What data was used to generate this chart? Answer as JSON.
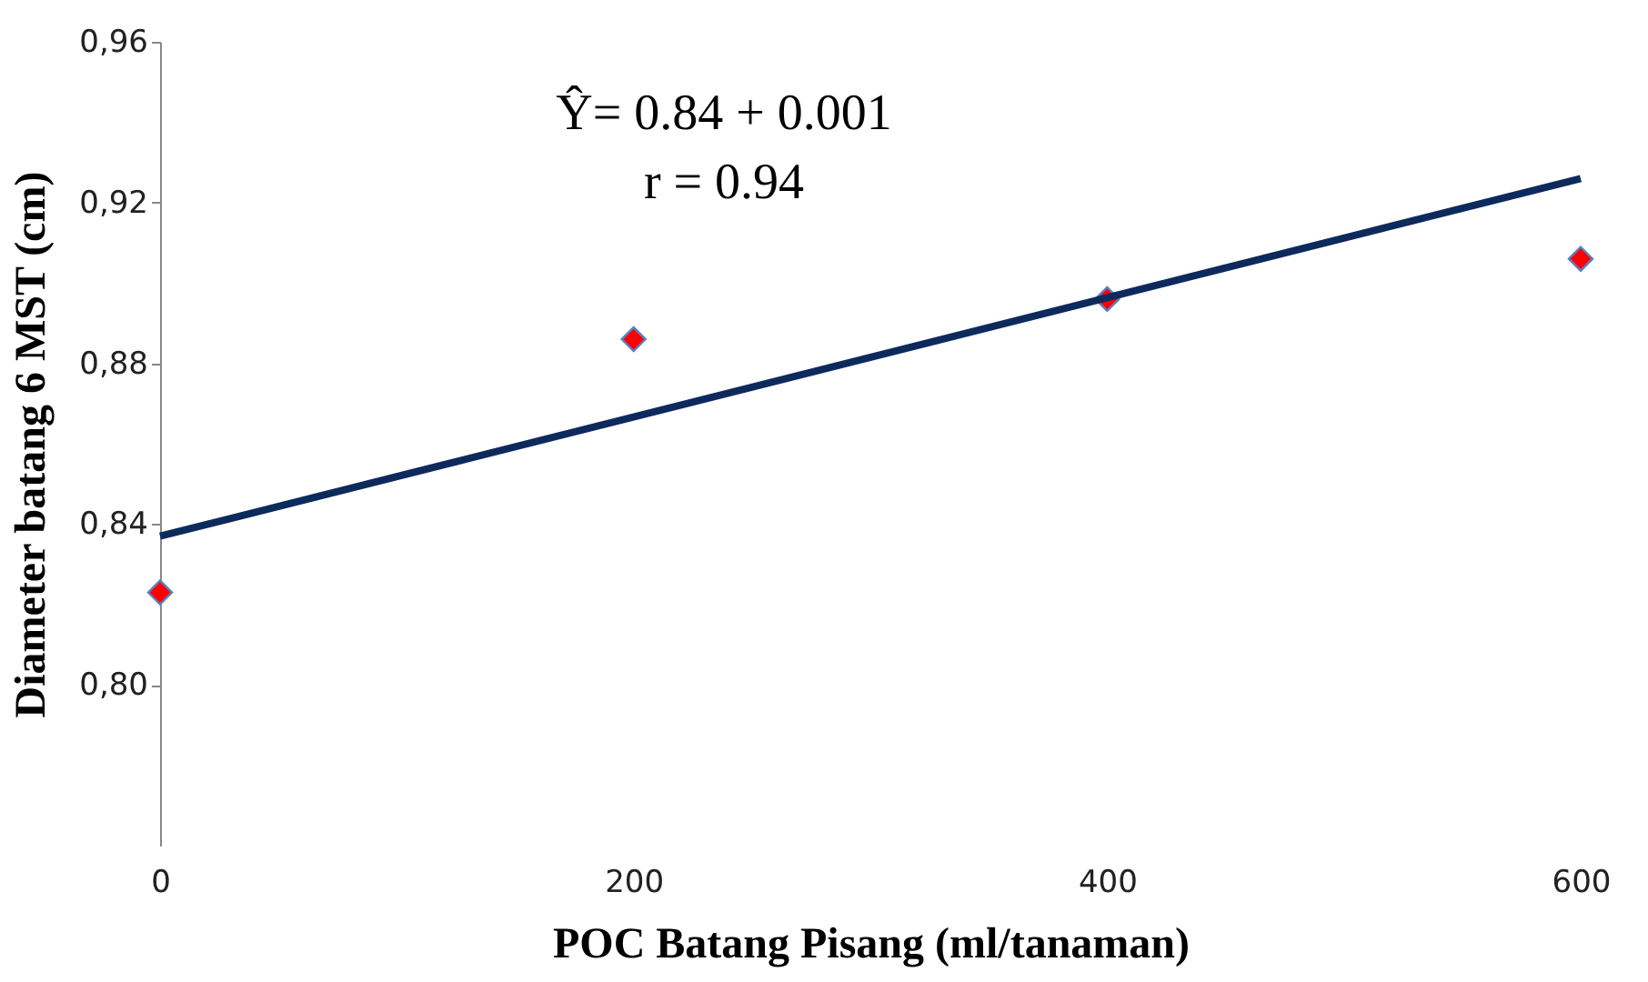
{
  "chart_data": {
    "type": "scatter",
    "xlabel": "POC Batang Pisang (ml/tanaman)",
    "ylabel": "Diameter batang 6 MST (cm)",
    "x": [
      0,
      200,
      400,
      600
    ],
    "series": [
      {
        "color": "#ff0000",
        "marker": "diamond",
        "values": [
          0.823,
          0.886,
          0.896,
          0.906
        ]
      },
      {
        "type": "line",
        "color": "#0d2a5c",
        "line_style": "solid",
        "marker": "none",
        "x": [
          0,
          600
        ],
        "values": [
          0.837,
          0.926
        ]
      }
    ],
    "annotations": [
      "Ŷ= 0.84 + 0.001",
      "r = 0.94"
    ],
    "xlim": [
      0,
      600
    ],
    "xticks": [
      0,
      200,
      400,
      600
    ],
    "ylim": [
      0.76,
      0.96
    ],
    "yticks": [
      {
        "value": 0.8,
        "label": "0,80"
      },
      {
        "value": 0.84,
        "label": "0,84"
      },
      {
        "value": 0.88,
        "label": "0,88"
      },
      {
        "value": 0.92,
        "label": "0,92"
      },
      {
        "value": 0.96,
        "label": "0,96"
      }
    ],
    "grid": false
  }
}
